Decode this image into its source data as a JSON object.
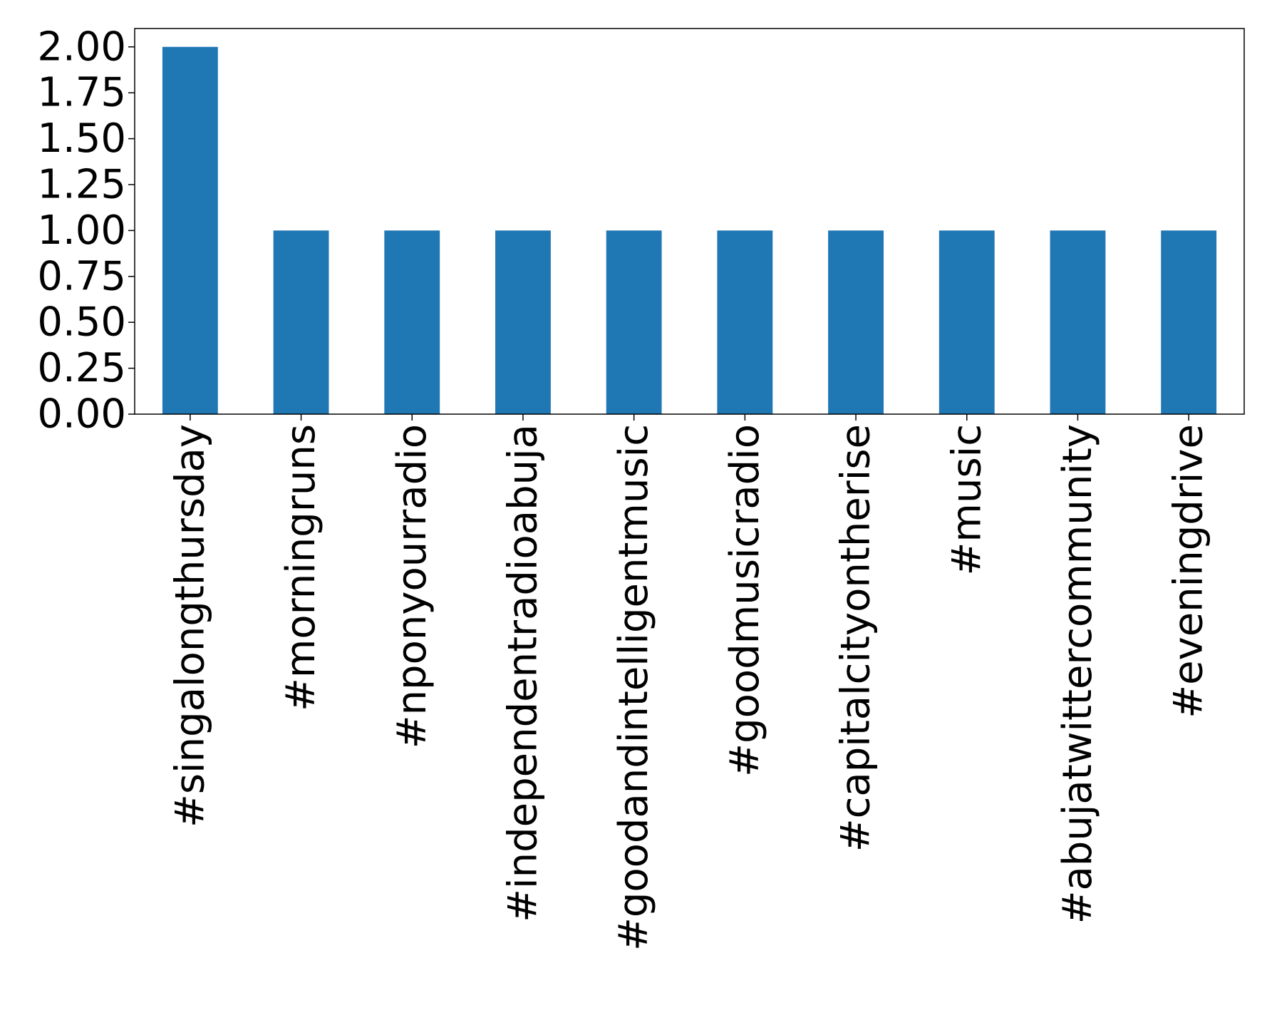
{
  "chart_data": {
    "type": "bar",
    "categories": [
      "#singalongthursday",
      "#morningruns",
      "#nponyourradio",
      "#independentradioabuja",
      "#goodandintelligentmusic",
      "#goodmusicradio",
      "#capitalcityontherise",
      "#music",
      "#abujatwittercommunity",
      "#eveningdrive"
    ],
    "values": [
      2,
      1,
      1,
      1,
      1,
      1,
      1,
      1,
      1,
      1
    ],
    "title": "",
    "xlabel": "",
    "ylabel": "",
    "ylim": [
      0,
      2.1
    ],
    "yticks": [
      "0.00",
      "0.25",
      "0.50",
      "0.75",
      "1.00",
      "1.25",
      "1.50",
      "1.75",
      "2.00"
    ],
    "grid": false,
    "legend": "none",
    "bar_color": "#1f77b4"
  }
}
